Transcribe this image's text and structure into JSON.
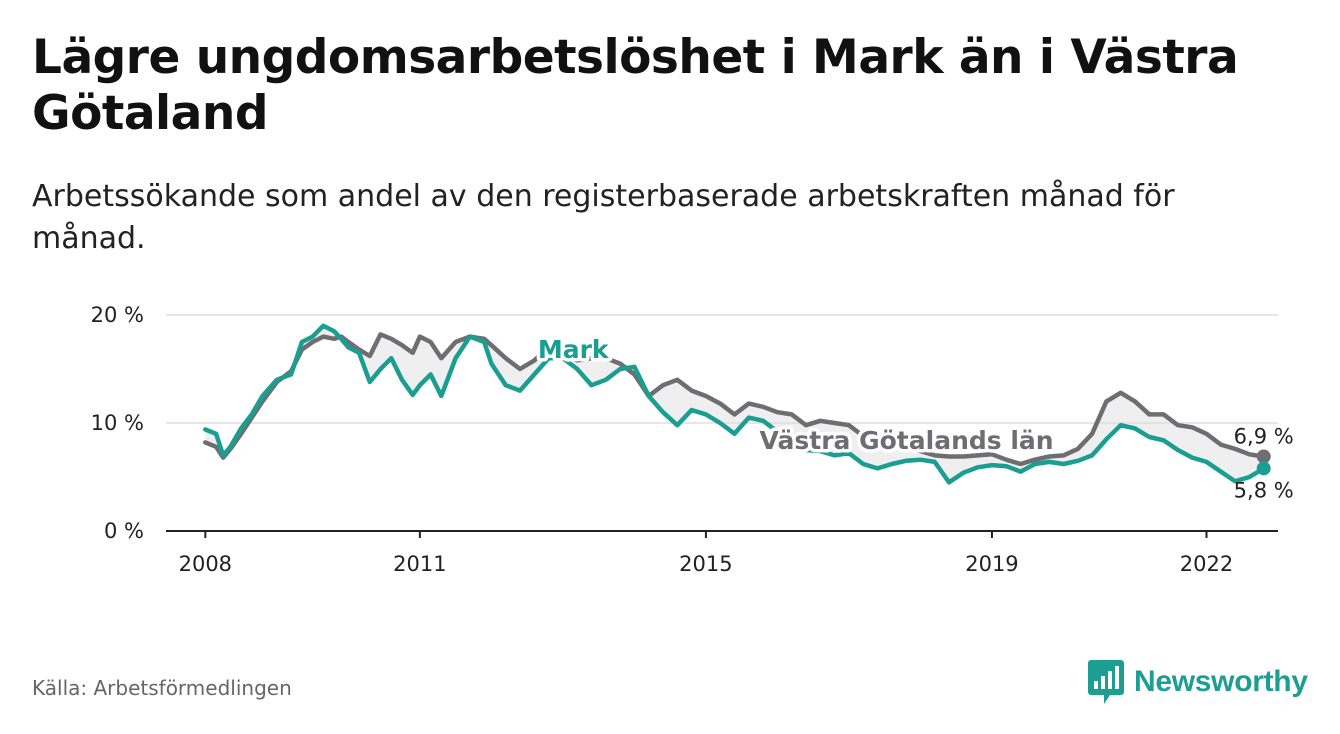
{
  "title": "Lägre ungdomsarbetslöshet i Mark än i Västra Götaland",
  "subtitle": "Arbetssökande som andel av den registerbaserade arbetskraften månad för månad.",
  "source": "Källa: Arbetsförmedlingen",
  "brand": {
    "name": "Newsworthy",
    "icon": "newsworthy-logo-icon"
  },
  "colors": {
    "mark": "#1a9e92",
    "region": "#6e6d72",
    "grid": "#dddddd",
    "axis": "#222222",
    "band": "#ededed"
  },
  "chart_data": {
    "type": "line",
    "title": "Lägre ungdomsarbetslöshet i Mark än i Västra Götaland",
    "xlabel": "",
    "ylabel": "",
    "xlim": [
      2007.45,
      2023.0
    ],
    "ylim": [
      0,
      20
    ],
    "grid": true,
    "y_ticks": [
      0,
      10,
      20
    ],
    "y_tick_labels": [
      "0 %",
      "10 %",
      "20 %"
    ],
    "x_ticks": [
      2008,
      2011,
      2015,
      2019,
      2022
    ],
    "x_tick_labels": [
      "2008",
      "2011",
      "2015",
      "2019",
      "2022"
    ],
    "series": [
      {
        "name": "Mark",
        "label": "Mark",
        "end_label": "5,8 %",
        "x": [
          2008.0,
          2008.15,
          2008.25,
          2008.35,
          2008.5,
          2008.65,
          2008.8,
          2009.0,
          2009.2,
          2009.35,
          2009.5,
          2009.65,
          2009.8,
          2009.9,
          2010.0,
          2010.15,
          2010.3,
          2010.45,
          2010.6,
          2010.75,
          2010.9,
          2011.0,
          2011.15,
          2011.3,
          2011.5,
          2011.7,
          2011.9,
          2012.0,
          2012.2,
          2012.4,
          2012.6,
          2012.8,
          2013.0,
          2013.2,
          2013.4,
          2013.6,
          2013.8,
          2014.0,
          2014.2,
          2014.4,
          2014.6,
          2014.8,
          2015.0,
          2015.2,
          2015.4,
          2015.6,
          2015.8,
          2016.0,
          2016.2,
          2016.4,
          2016.6,
          2016.8,
          2017.0,
          2017.2,
          2017.4,
          2017.6,
          2017.8,
          2018.0,
          2018.2,
          2018.4,
          2018.6,
          2018.8,
          2019.0,
          2019.2,
          2019.4,
          2019.6,
          2019.8,
          2020.0,
          2020.2,
          2020.4,
          2020.6,
          2020.8,
          2021.0,
          2021.2,
          2021.4,
          2021.6,
          2021.8,
          2022.0,
          2022.2,
          2022.4,
          2022.6,
          2022.8
        ],
        "values": [
          9.4,
          9.0,
          7.0,
          7.8,
          9.5,
          10.8,
          12.5,
          14.0,
          14.5,
          17.5,
          18.0,
          19.0,
          18.5,
          17.8,
          17.0,
          16.5,
          13.8,
          15.0,
          16.0,
          14.0,
          12.6,
          13.5,
          14.5,
          12.5,
          16.0,
          18.0,
          17.5,
          15.5,
          13.5,
          13.0,
          14.5,
          16.0,
          16.0,
          15.0,
          13.5,
          14.0,
          15.0,
          15.2,
          12.5,
          11.0,
          9.8,
          11.2,
          10.8,
          10.0,
          9.0,
          10.5,
          10.2,
          9.2,
          8.2,
          7.5,
          7.4,
          7.0,
          7.2,
          6.2,
          5.8,
          6.2,
          6.5,
          6.6,
          6.4,
          4.5,
          5.4,
          5.9,
          6.1,
          6.0,
          5.5,
          6.2,
          6.4,
          6.2,
          6.5,
          7.0,
          8.5,
          9.8,
          9.5,
          8.7,
          8.4,
          7.5,
          6.8,
          6.4,
          5.5,
          4.6,
          5.0,
          5.8
        ]
      },
      {
        "name": "Västra Götalands län",
        "label": "Västra Götalands län",
        "end_label": "6,9 %",
        "x": [
          2008.0,
          2008.15,
          2008.25,
          2008.35,
          2008.5,
          2008.65,
          2008.8,
          2009.0,
          2009.2,
          2009.35,
          2009.5,
          2009.65,
          2009.8,
          2009.9,
          2010.0,
          2010.15,
          2010.3,
          2010.45,
          2010.6,
          2010.75,
          2010.9,
          2011.0,
          2011.15,
          2011.3,
          2011.5,
          2011.7,
          2011.9,
          2012.0,
          2012.2,
          2012.4,
          2012.6,
          2012.8,
          2013.0,
          2013.2,
          2013.4,
          2013.6,
          2013.8,
          2014.0,
          2014.2,
          2014.4,
          2014.6,
          2014.8,
          2015.0,
          2015.2,
          2015.4,
          2015.6,
          2015.8,
          2016.0,
          2016.2,
          2016.4,
          2016.6,
          2016.8,
          2017.0,
          2017.2,
          2017.4,
          2017.6,
          2017.8,
          2018.0,
          2018.2,
          2018.4,
          2018.6,
          2018.8,
          2019.0,
          2019.2,
          2019.4,
          2019.6,
          2019.8,
          2020.0,
          2020.2,
          2020.4,
          2020.6,
          2020.8,
          2021.0,
          2021.2,
          2021.4,
          2021.6,
          2021.8,
          2022.0,
          2022.2,
          2022.4,
          2022.6,
          2022.8
        ],
        "values": [
          8.2,
          7.8,
          6.8,
          7.6,
          9.0,
          10.5,
          12.0,
          13.8,
          14.8,
          16.8,
          17.5,
          18.0,
          17.8,
          18.0,
          17.5,
          16.8,
          16.2,
          18.2,
          17.8,
          17.2,
          16.5,
          18.0,
          17.5,
          16.0,
          17.5,
          18.0,
          17.8,
          17.2,
          16.0,
          15.0,
          15.8,
          17.0,
          16.2,
          15.8,
          16.0,
          16.0,
          15.5,
          14.5,
          12.5,
          13.5,
          14.0,
          13.0,
          12.5,
          11.8,
          10.8,
          11.8,
          11.5,
          11.0,
          10.8,
          9.8,
          10.2,
          10.0,
          9.8,
          8.8,
          8.4,
          8.0,
          8.0,
          7.4,
          7.0,
          6.9,
          6.9,
          7.0,
          7.1,
          6.6,
          6.2,
          6.6,
          6.9,
          7.0,
          7.6,
          9.0,
          12.0,
          12.8,
          12.0,
          10.8,
          10.8,
          9.8,
          9.6,
          9.0,
          8.0,
          7.6,
          7.1,
          6.9
        ]
      }
    ]
  }
}
